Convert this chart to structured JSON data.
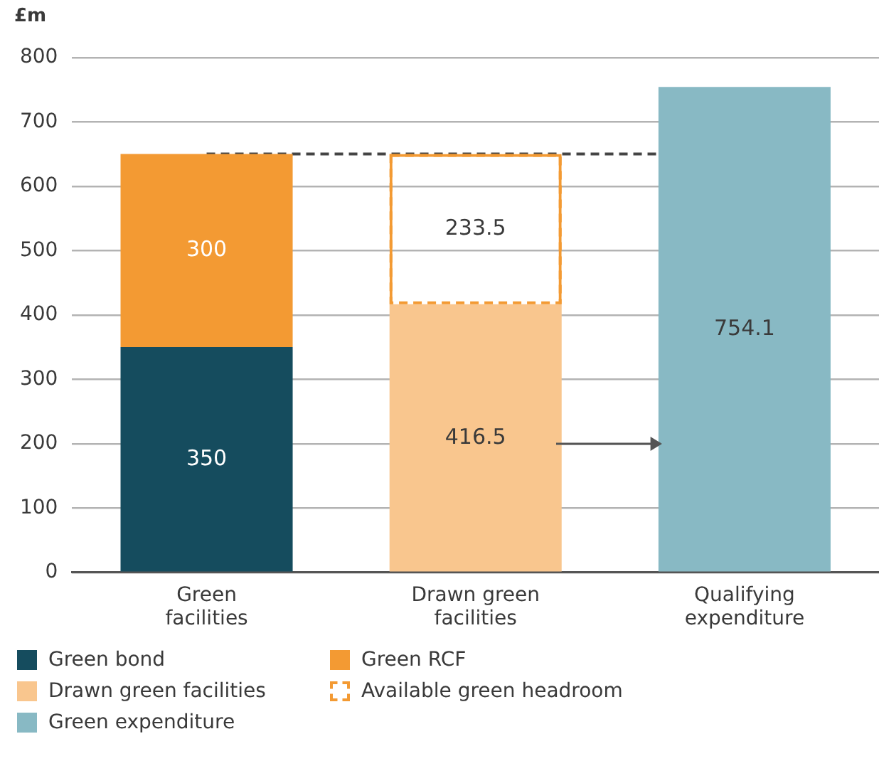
{
  "chart_data": {
    "type": "bar",
    "stacked": true,
    "ylabel": "£m",
    "categories": [
      "Green\nfacilities",
      "Drawn green\nfacilities",
      "Qualifying\nexpenditure"
    ],
    "series": [
      {
        "name": "Green bond",
        "color": "#154c5e",
        "values": [
          350,
          null,
          null
        ]
      },
      {
        "name": "Green RCF",
        "color": "#f39a33",
        "values": [
          300,
          null,
          null
        ]
      },
      {
        "name": "Drawn green facilities",
        "color": "#f9c68e",
        "values": [
          null,
          416.5,
          null
        ]
      },
      {
        "name": "Available green headroom",
        "color": "#f39a33",
        "line_style": "dashed",
        "values": [
          null,
          233.5,
          null
        ]
      },
      {
        "name": "Green expenditure",
        "color": "#88b9c4",
        "values": [
          null,
          null,
          754.1
        ]
      }
    ],
    "ylim": [
      0,
      800
    ],
    "yticks": [
      0,
      100,
      200,
      300,
      400,
      500,
      600,
      700,
      800
    ],
    "grid": "y",
    "legend": "bottom",
    "data_labels": true,
    "ref_lines": [
      {
        "axis": "y",
        "value": 650,
        "color": "#444444",
        "line_style": "dashed"
      }
    ]
  }
}
